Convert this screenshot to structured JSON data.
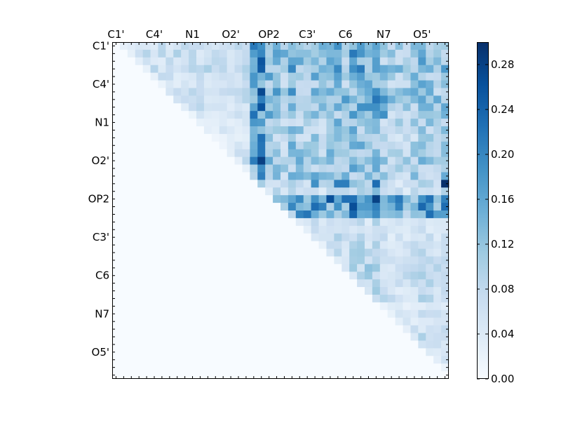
{
  "chart_data": {
    "type": "heatmap",
    "title": "",
    "xlabel": "",
    "ylabel": "",
    "n": 44,
    "x_tick_labels": [
      "C1'",
      "C4'",
      "N1",
      "O2'",
      "OP2",
      "C3'",
      "C6",
      "N7",
      "O5'"
    ],
    "y_tick_labels": [
      "C1'",
      "C4'",
      "N1",
      "O2'",
      "OP2",
      "C3'",
      "C6",
      "N7",
      "O5'"
    ],
    "tick_positions": [
      0.5,
      5.5,
      10.5,
      15.5,
      20.5,
      25.5,
      30.5,
      35.5,
      40.5
    ],
    "colorbar": {
      "min": 0.0,
      "max": 0.3,
      "tick_values": [
        0.0,
        0.04,
        0.08,
        0.12,
        0.16,
        0.2,
        0.24,
        0.28
      ],
      "tick_labels": [
        "0.00",
        "0.04",
        "0.08",
        "0.12",
        "0.16",
        "0.20",
        "0.24",
        "0.28"
      ],
      "colormap": "Blues",
      "stops": [
        "#f7fbff",
        "#deebf7",
        "#c6dbef",
        "#9ecae1",
        "#6baed6",
        "#4292c6",
        "#2171b5",
        "#08519c",
        "#08306b"
      ]
    },
    "lower_triangle_value": 0.0,
    "row_base_values": [
      0.06,
      0.07,
      0.06,
      0.07,
      0.06,
      0.05,
      0.07,
      0.07,
      0.06,
      0.05,
      0.04,
      0.04,
      0.03,
      0.04,
      0.05,
      0.06,
      0.04,
      0.05,
      0.02,
      0.02,
      0.13,
      0.12,
      0.11,
      0.02,
      0.02,
      0.03,
      0.03,
      0.04,
      0.03,
      0.05,
      0.05,
      0.04,
      0.03,
      0.04,
      0.02,
      0.03,
      0.02,
      0.03,
      0.04,
      0.03,
      0.02,
      0.02,
      0.01,
      0.0
    ],
    "col_bias_values": [
      0,
      0,
      0,
      0,
      0,
      0,
      0,
      0,
      0,
      0,
      0,
      0,
      0,
      0,
      0,
      0,
      0,
      0,
      0.14,
      0.17,
      0.1,
      0.08,
      0.06,
      0.09,
      0.07,
      0.06,
      0.08,
      0.06,
      0.08,
      0.09,
      0.07,
      0.1,
      0.1,
      0.08,
      0.11,
      0.06,
      0.04,
      0.05,
      0.04,
      0.06,
      0.08,
      0.07,
      0.05,
      0.07
    ],
    "highlights": [
      {
        "row": 18,
        "col": 43,
        "value": 0.3
      },
      {
        "row": 18,
        "col": 34,
        "value": 0.23
      },
      {
        "row": 18,
        "col": 29,
        "value": 0.21
      },
      {
        "row": 18,
        "col": 30,
        "value": 0.21
      },
      {
        "row": 18,
        "col": 26,
        "value": 0.19
      },
      {
        "row": 17,
        "col": 19,
        "value": 0.21
      },
      {
        "row": 13,
        "col": 19,
        "value": 0.22
      },
      {
        "row": 7,
        "col": 19,
        "value": 0.21
      },
      {
        "row": 8,
        "col": 33,
        "value": 0.19
      },
      {
        "row": 9,
        "col": 35,
        "value": 0.19
      },
      {
        "row": 7,
        "col": 35,
        "value": 0.19
      },
      {
        "row": 0,
        "col": 19,
        "value": 0.19
      }
    ]
  }
}
